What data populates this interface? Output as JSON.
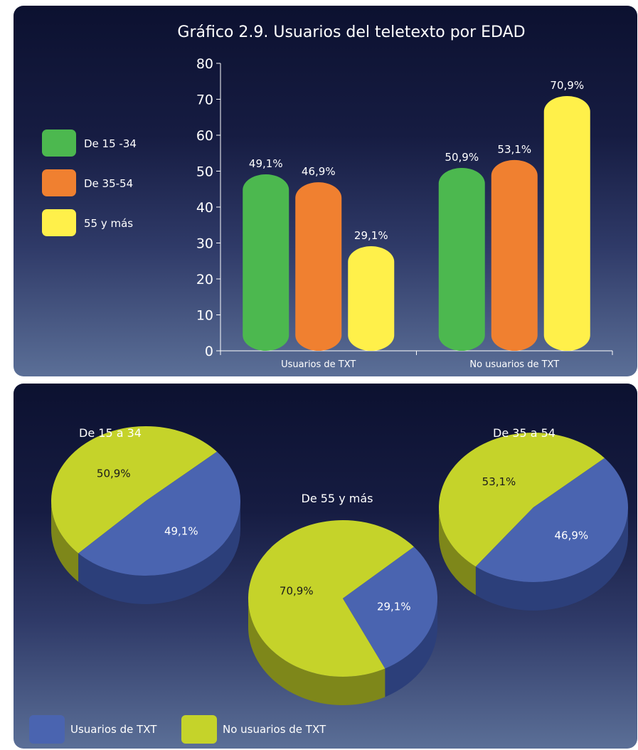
{
  "chart_data": [
    {
      "type": "bar",
      "title": "Gráfico 2.9. Usuarios del teletexto por EDAD",
      "categories": [
        "Usuarios de TXT",
        "No usuarios de TXT"
      ],
      "series": [
        {
          "name": "De 15 -34",
          "values": [
            49.1,
            50.9
          ],
          "labels": [
            "49,1%",
            "50,9%"
          ]
        },
        {
          "name": "De 35-54",
          "values": [
            46.9,
            53.1
          ],
          "labels": [
            "46,9%",
            "53,1%"
          ]
        },
        {
          "name": "55 y más",
          "values": [
            29.1,
            70.9
          ],
          "labels": [
            "29,1%",
            "70,9%"
          ]
        }
      ],
      "yticks": [
        "0",
        "10",
        "20",
        "30",
        "40",
        "50",
        "60",
        "70",
        "80"
      ],
      "ylim": [
        0,
        80
      ],
      "legend_position": "left",
      "grid": false
    },
    {
      "type": "pie",
      "pies": [
        {
          "title": "De 15 a 34",
          "values": [
            50.9,
            49.1
          ],
          "labels": [
            "50,9%",
            "49,1%"
          ]
        },
        {
          "title": "De 55 y más",
          "values": [
            70.9,
            29.1
          ],
          "labels": [
            "70,9%",
            "29,1%"
          ]
        },
        {
          "title": "De 35 a 54",
          "values": [
            53.1,
            46.9
          ],
          "labels": [
            "53,1%",
            "46,9%"
          ]
        }
      ],
      "slice_names": [
        "No usuarios de TXT",
        "Usuarios de TXT"
      ],
      "legend": [
        "Usuarios de TXT",
        "No usuarios de TXT"
      ],
      "legend_position": "bottom-left"
    }
  ],
  "colors": {
    "green": "#4cb84f",
    "orange": "#f08030",
    "yellow": "#fff04a",
    "pie_blue": "#4a64b0",
    "pie_blue_dark": "#2c3f7a",
    "pie_lime": "#c5d32a",
    "pie_lime_dark": "#7e871a"
  }
}
